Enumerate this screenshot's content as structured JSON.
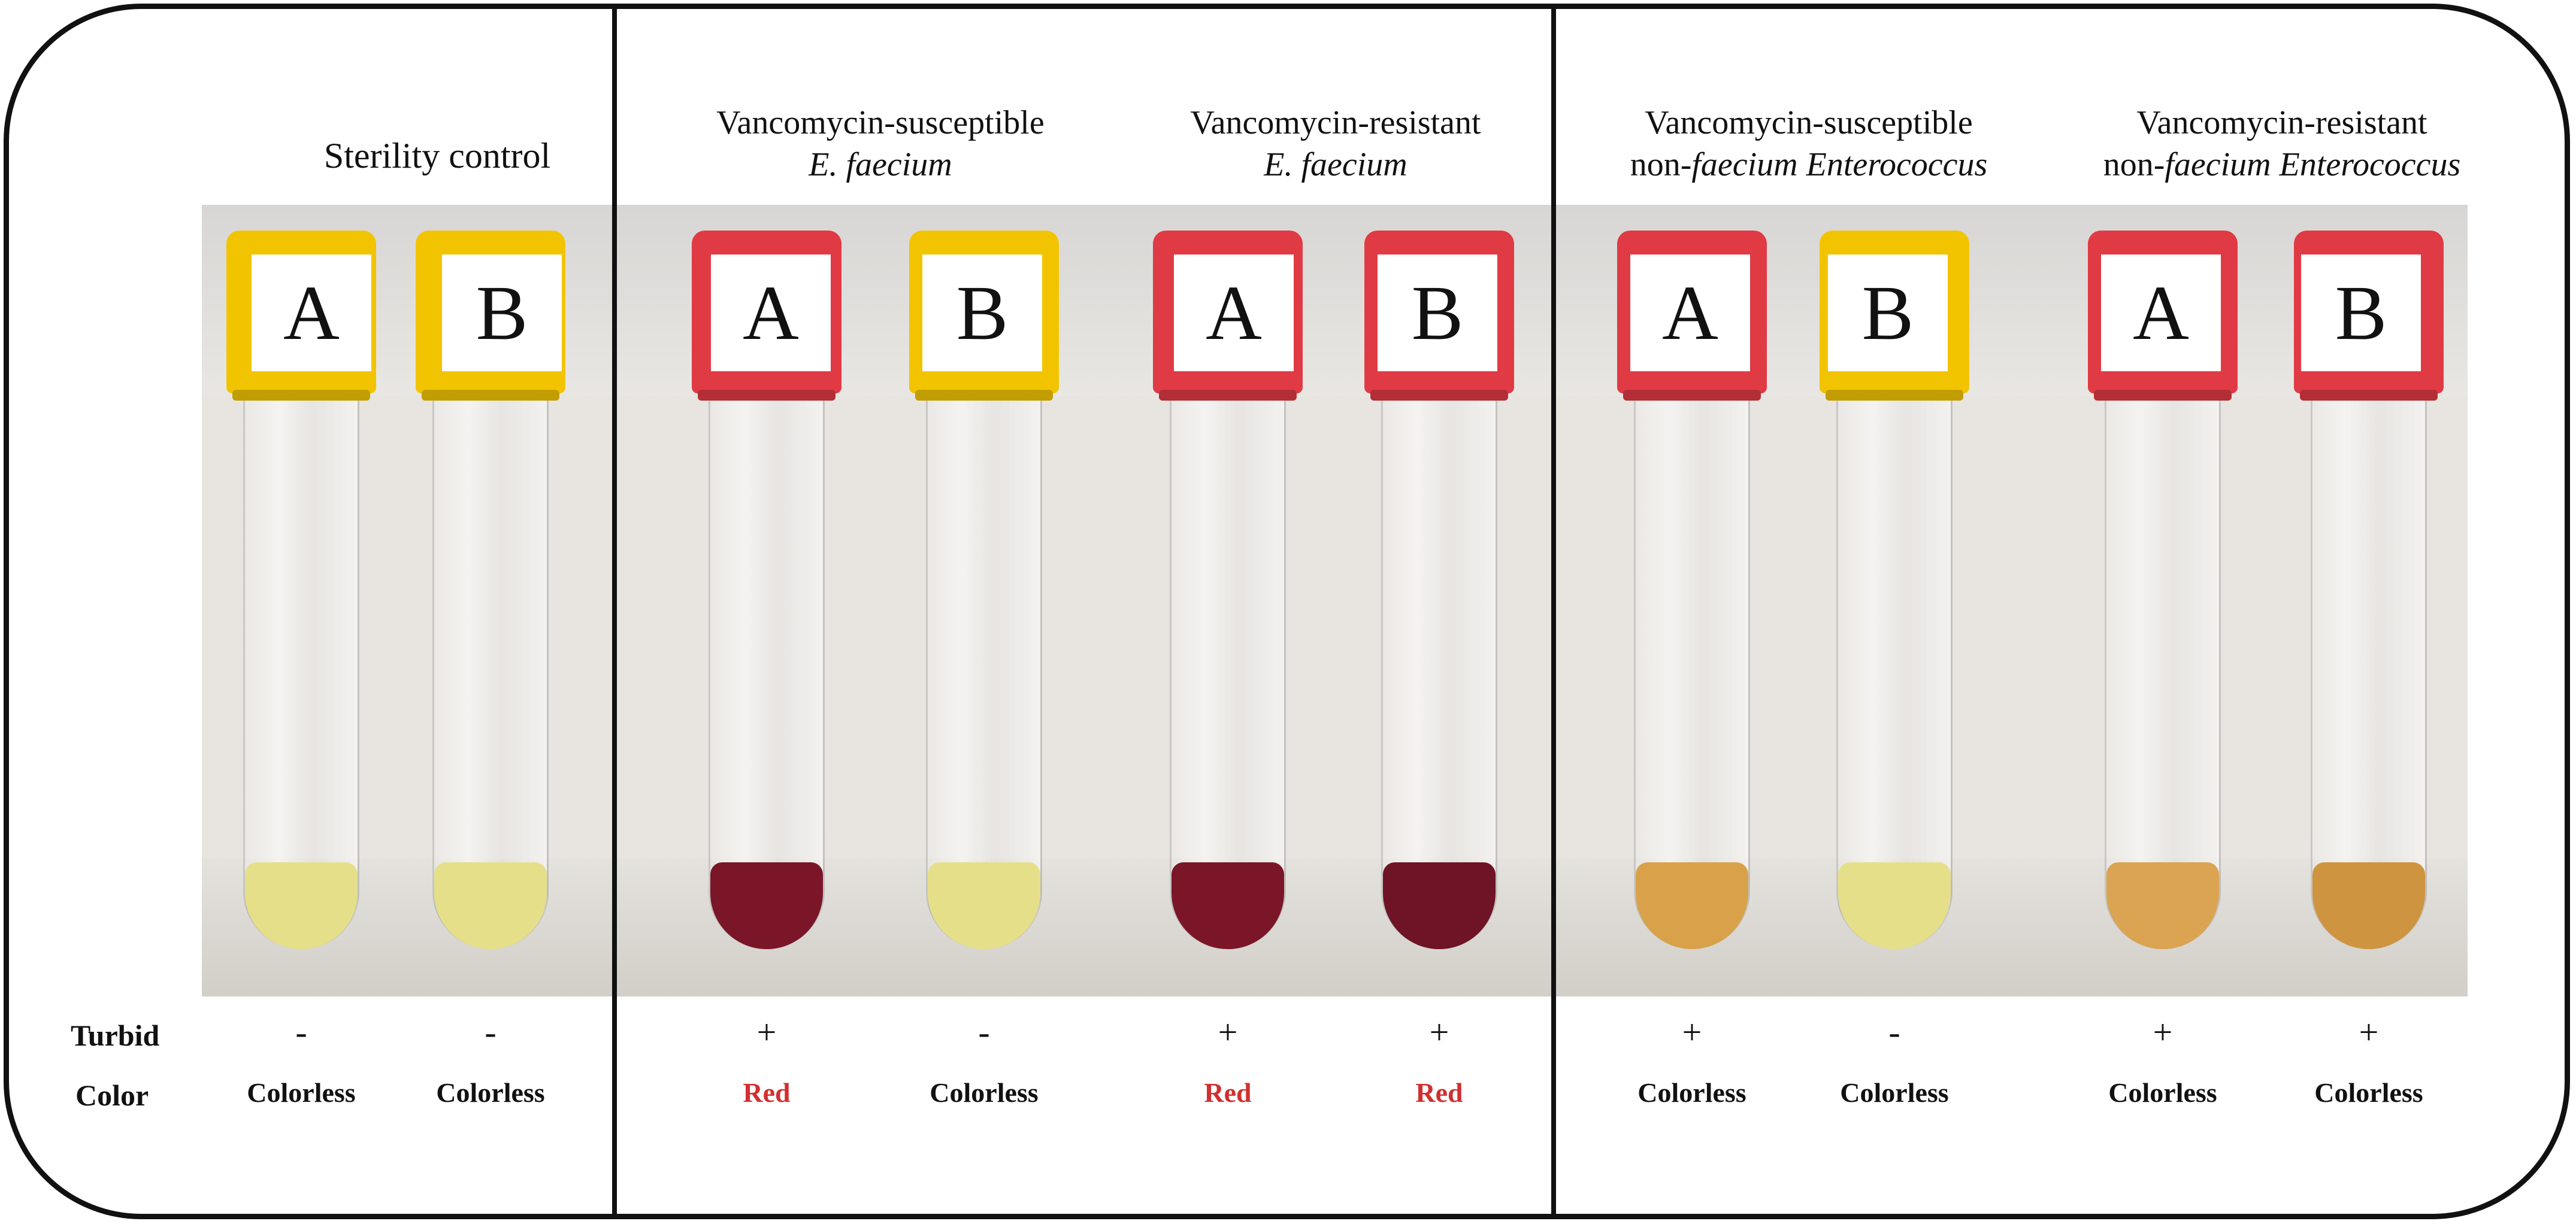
{
  "groups": [
    {
      "title_line1": "Sterility control",
      "title_line2_pre": "",
      "title_line2_italic": "",
      "title_line2_post": ""
    },
    {
      "title_line1": "Vancomycin-susceptible",
      "title_line2_pre": "",
      "title_line2_italic": "E. faecium",
      "title_line2_post": ""
    },
    {
      "title_line1": "Vancomycin-resistant",
      "title_line2_pre": "",
      "title_line2_italic": "E. faecium",
      "title_line2_post": ""
    },
    {
      "title_line1": "Vancomycin-susceptible",
      "title_line2_pre": "non-",
      "title_line2_italic": "faecium Enterococcus",
      "title_line2_post": ""
    },
    {
      "title_line1": "Vancomycin-resistant",
      "title_line2_pre": "non-",
      "title_line2_italic": "faecium Enterococcus",
      "title_line2_post": ""
    }
  ],
  "row_labels": {
    "turbid": "Turbid",
    "color": "Color"
  },
  "tubes": [
    {
      "label": "A",
      "turbid": "-",
      "color": "Colorless",
      "cap_color": "#f2c400",
      "liquid_color": "#e6df8a"
    },
    {
      "label": "B",
      "turbid": "-",
      "color": "Colorless",
      "cap_color": "#f2c400",
      "liquid_color": "#e6df8a"
    },
    {
      "label": "A",
      "turbid": "+",
      "color": "Red",
      "cap_color": "#e03a44",
      "liquid_color": "#7a1628"
    },
    {
      "label": "B",
      "turbid": "-",
      "color": "Colorless",
      "cap_color": "#f2c400",
      "liquid_color": "#e6df8a"
    },
    {
      "label": "A",
      "turbid": "+",
      "color": "Red",
      "cap_color": "#e03a44",
      "liquid_color": "#7a1628"
    },
    {
      "label": "B",
      "turbid": "+",
      "color": "Red",
      "cap_color": "#e03a44",
      "liquid_color": "#6e1426"
    },
    {
      "label": "A",
      "turbid": "+",
      "color": "Colorless",
      "cap_color": "#e03a44",
      "liquid_color": "#d9a24a"
    },
    {
      "label": "B",
      "turbid": "-",
      "color": "Colorless",
      "cap_color": "#f2c400",
      "liquid_color": "#e6df8a"
    },
    {
      "label": "A",
      "turbid": "+",
      "color": "Colorless",
      "cap_color": "#e03a44",
      "liquid_color": "#dba452"
    },
    {
      "label": "B",
      "turbid": "+",
      "color": "Colorless",
      "cap_color": "#e03a44",
      "liquid_color": "#cf9440"
    }
  ],
  "colors": {
    "red_result_text": "#d0302e",
    "frame": "#111111"
  }
}
